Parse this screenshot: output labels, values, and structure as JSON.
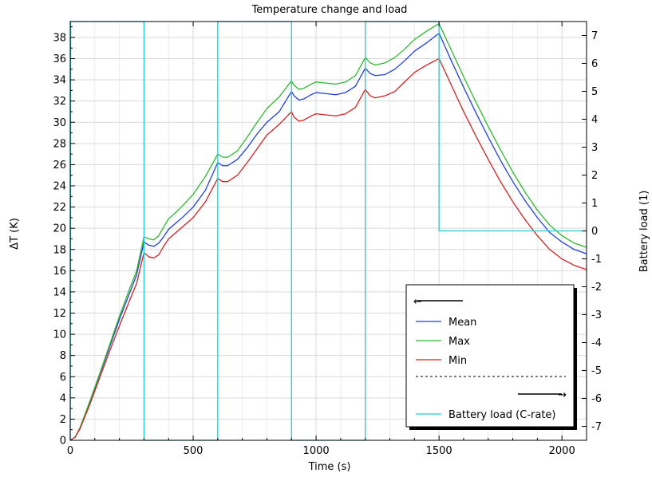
{
  "chart_data": {
    "type": "line",
    "title": "Temperature change and load",
    "xlabel": "Time (s)",
    "ylabel_left": "ΔT (K)",
    "ylabel_right": "Battery load (1)",
    "xlim": [
      0,
      2100
    ],
    "ylim_left": [
      0,
      39.5
    ],
    "ylim_right": [
      -7.5,
      7.5
    ],
    "x_ticks": [
      0,
      500,
      1000,
      1500,
      2000
    ],
    "y_left_ticks": [
      0,
      2,
      4,
      6,
      8,
      10,
      12,
      14,
      16,
      18,
      20,
      22,
      24,
      26,
      28,
      30,
      32,
      34,
      36,
      38
    ],
    "y_right_ticks": [
      -7,
      -6,
      -5,
      -4,
      -3,
      -2,
      -1,
      0,
      1,
      2,
      3,
      4,
      5,
      6,
      7
    ],
    "grid": true,
    "legend_placement": "bottom-right",
    "legend": {
      "left_axis_arrow": "←",
      "right_axis_arrow": "→"
    },
    "series": [
      {
        "name": "Mean",
        "axis": "left",
        "color": "#1f3fe0",
        "points": [
          [
            0,
            0
          ],
          [
            20,
            0.3
          ],
          [
            40,
            1.2
          ],
          [
            80,
            3.6
          ],
          [
            120,
            6.2
          ],
          [
            160,
            8.8
          ],
          [
            200,
            11.4
          ],
          [
            240,
            13.8
          ],
          [
            270,
            15.6
          ],
          [
            300,
            18.7
          ],
          [
            320,
            18.4
          ],
          [
            340,
            18.3
          ],
          [
            360,
            18.6
          ],
          [
            380,
            19.2
          ],
          [
            400,
            19.9
          ],
          [
            430,
            20.5
          ],
          [
            460,
            21.1
          ],
          [
            500,
            22.0
          ],
          [
            550,
            23.6
          ],
          [
            600,
            26.2
          ],
          [
            620,
            25.9
          ],
          [
            640,
            25.9
          ],
          [
            680,
            26.5
          ],
          [
            720,
            27.6
          ],
          [
            760,
            28.9
          ],
          [
            800,
            30.0
          ],
          [
            850,
            31.0
          ],
          [
            900,
            32.9
          ],
          [
            910,
            32.5
          ],
          [
            930,
            32.1
          ],
          [
            950,
            32.2
          ],
          [
            980,
            32.6
          ],
          [
            1000,
            32.8
          ],
          [
            1040,
            32.7
          ],
          [
            1080,
            32.6
          ],
          [
            1120,
            32.8
          ],
          [
            1160,
            33.4
          ],
          [
            1200,
            35.1
          ],
          [
            1220,
            34.6
          ],
          [
            1240,
            34.4
          ],
          [
            1280,
            34.5
          ],
          [
            1320,
            35.0
          ],
          [
            1360,
            35.8
          ],
          [
            1400,
            36.7
          ],
          [
            1450,
            37.5
          ],
          [
            1500,
            38.4
          ],
          [
            1550,
            35.8
          ],
          [
            1600,
            33.3
          ],
          [
            1650,
            30.9
          ],
          [
            1700,
            28.6
          ],
          [
            1750,
            26.4
          ],
          [
            1800,
            24.4
          ],
          [
            1850,
            22.6
          ],
          [
            1900,
            21.0
          ],
          [
            1950,
            19.6
          ],
          [
            2000,
            18.7
          ],
          [
            2050,
            18.0
          ],
          [
            2100,
            17.6
          ]
        ]
      },
      {
        "name": "Max",
        "axis": "left",
        "color": "#2db82d",
        "points": [
          [
            0,
            0
          ],
          [
            20,
            0.3
          ],
          [
            40,
            1.2
          ],
          [
            80,
            3.7
          ],
          [
            120,
            6.3
          ],
          [
            160,
            9.0
          ],
          [
            200,
            11.7
          ],
          [
            240,
            14.2
          ],
          [
            270,
            16.0
          ],
          [
            300,
            19.2
          ],
          [
            320,
            19.0
          ],
          [
            340,
            18.9
          ],
          [
            360,
            19.3
          ],
          [
            380,
            20.1
          ],
          [
            400,
            20.9
          ],
          [
            430,
            21.5
          ],
          [
            460,
            22.2
          ],
          [
            500,
            23.2
          ],
          [
            550,
            24.9
          ],
          [
            600,
            27.0
          ],
          [
            620,
            26.7
          ],
          [
            640,
            26.7
          ],
          [
            680,
            27.3
          ],
          [
            720,
            28.6
          ],
          [
            760,
            30.0
          ],
          [
            800,
            31.3
          ],
          [
            850,
            32.4
          ],
          [
            900,
            33.9
          ],
          [
            910,
            33.5
          ],
          [
            930,
            33.1
          ],
          [
            950,
            33.2
          ],
          [
            980,
            33.6
          ],
          [
            1000,
            33.8
          ],
          [
            1040,
            33.7
          ],
          [
            1080,
            33.6
          ],
          [
            1120,
            33.8
          ],
          [
            1160,
            34.4
          ],
          [
            1200,
            36.1
          ],
          [
            1220,
            35.6
          ],
          [
            1240,
            35.4
          ],
          [
            1280,
            35.6
          ],
          [
            1320,
            36.1
          ],
          [
            1360,
            36.9
          ],
          [
            1400,
            37.8
          ],
          [
            1450,
            38.6
          ],
          [
            1500,
            39.3
          ],
          [
            1550,
            36.8
          ],
          [
            1600,
            34.3
          ],
          [
            1650,
            31.9
          ],
          [
            1700,
            29.6
          ],
          [
            1750,
            27.4
          ],
          [
            1800,
            25.3
          ],
          [
            1850,
            23.4
          ],
          [
            1900,
            21.7
          ],
          [
            1950,
            20.3
          ],
          [
            2000,
            19.3
          ],
          [
            2050,
            18.6
          ],
          [
            2100,
            18.2
          ]
        ]
      },
      {
        "name": "Min",
        "axis": "left",
        "color": "#d42020",
        "points": [
          [
            0,
            0
          ],
          [
            20,
            0.3
          ],
          [
            40,
            1.1
          ],
          [
            80,
            3.4
          ],
          [
            120,
            5.9
          ],
          [
            160,
            8.4
          ],
          [
            200,
            10.8
          ],
          [
            240,
            13.1
          ],
          [
            270,
            14.8
          ],
          [
            300,
            17.7
          ],
          [
            320,
            17.3
          ],
          [
            340,
            17.2
          ],
          [
            360,
            17.5
          ],
          [
            380,
            18.3
          ],
          [
            400,
            19.0
          ],
          [
            430,
            19.6
          ],
          [
            460,
            20.2
          ],
          [
            500,
            21.0
          ],
          [
            550,
            22.5
          ],
          [
            600,
            24.7
          ],
          [
            620,
            24.4
          ],
          [
            640,
            24.4
          ],
          [
            680,
            25.0
          ],
          [
            720,
            26.2
          ],
          [
            760,
            27.5
          ],
          [
            800,
            28.8
          ],
          [
            850,
            29.8
          ],
          [
            900,
            31.0
          ],
          [
            910,
            30.5
          ],
          [
            930,
            30.1
          ],
          [
            950,
            30.2
          ],
          [
            980,
            30.6
          ],
          [
            1000,
            30.8
          ],
          [
            1040,
            30.7
          ],
          [
            1080,
            30.6
          ],
          [
            1120,
            30.8
          ],
          [
            1160,
            31.4
          ],
          [
            1200,
            33.1
          ],
          [
            1220,
            32.5
          ],
          [
            1240,
            32.3
          ],
          [
            1280,
            32.5
          ],
          [
            1320,
            32.9
          ],
          [
            1360,
            33.8
          ],
          [
            1400,
            34.7
          ],
          [
            1450,
            35.4
          ],
          [
            1500,
            36.0
          ],
          [
            1550,
            33.5
          ],
          [
            1600,
            31.0
          ],
          [
            1650,
            28.7
          ],
          [
            1700,
            26.5
          ],
          [
            1750,
            24.4
          ],
          [
            1800,
            22.5
          ],
          [
            1850,
            20.8
          ],
          [
            1900,
            19.3
          ],
          [
            1950,
            18.0
          ],
          [
            2000,
            17.1
          ],
          [
            2050,
            16.5
          ],
          [
            2100,
            16.1
          ]
        ]
      },
      {
        "name": "Battery load (C-rate)",
        "axis": "right",
        "color": "#1fcfcf",
        "points": [
          [
            0,
            -7.5
          ],
          [
            2,
            7.5
          ],
          [
            300,
            7.5
          ],
          [
            300,
            -7.5
          ],
          [
            600,
            -7.5
          ],
          [
            600,
            7.5
          ],
          [
            900,
            7.5
          ],
          [
            900,
            -7.5
          ],
          [
            1200,
            -7.5
          ],
          [
            1200,
            7.5
          ],
          [
            1500,
            7.5
          ],
          [
            1500,
            0
          ],
          [
            2100,
            0
          ]
        ]
      }
    ]
  }
}
